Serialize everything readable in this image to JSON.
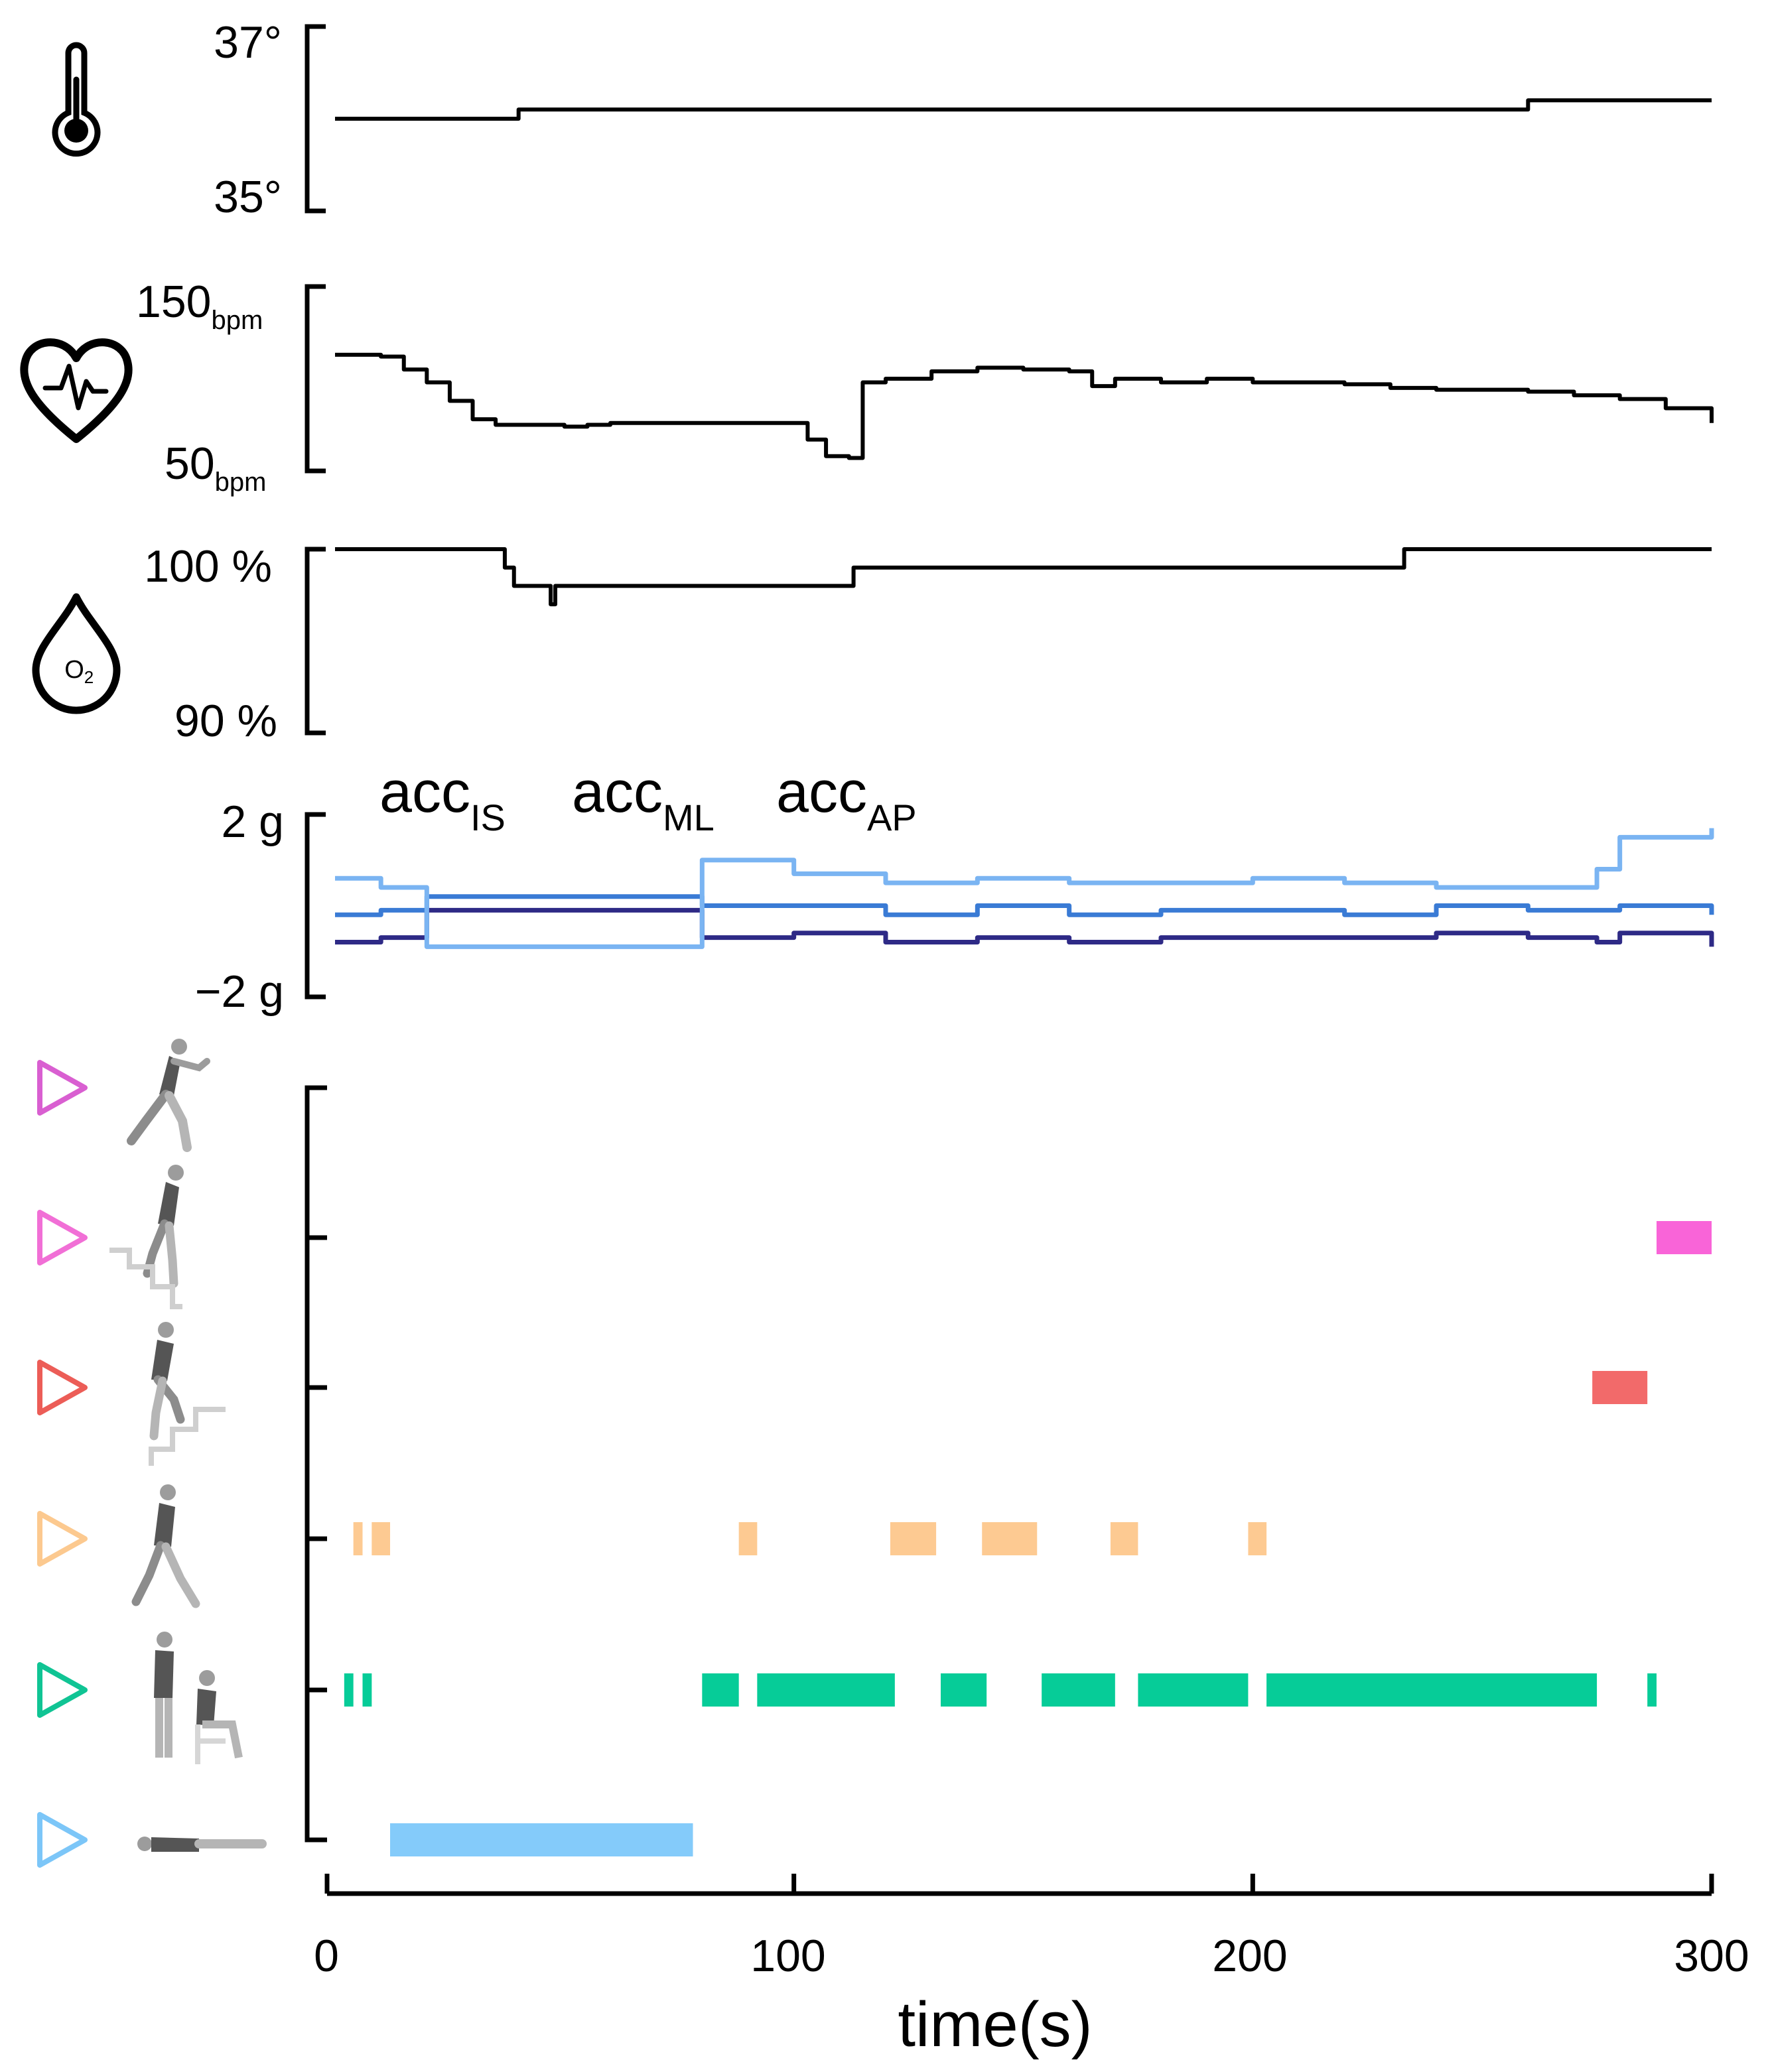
{
  "chart_data": [
    {
      "type": "line",
      "name_icon": "thermometer-icon",
      "ylim": [
        35,
        37
      ],
      "yticks": [
        "37°",
        "35°"
      ],
      "x": [
        0,
        20,
        40,
        60,
        80,
        100,
        120,
        140,
        160,
        180,
        200,
        220,
        240,
        260,
        280,
        300
      ],
      "series": [
        {
          "color": "#000000",
          "values": [
            36.0,
            36.0,
            36.1,
            36.1,
            36.1,
            36.1,
            36.1,
            36.1,
            36.1,
            36.1,
            36.1,
            36.1,
            36.1,
            36.2,
            36.2,
            36.2
          ]
        }
      ]
    },
    {
      "type": "line",
      "name_icon": "heart-rate-icon",
      "ylim": [
        50,
        150
      ],
      "yticks": [
        {
          "value": "150",
          "unit": "bpm"
        },
        {
          "value": "50",
          "unit": "bpm"
        }
      ],
      "x": [
        0,
        5,
        10,
        15,
        20,
        25,
        30,
        35,
        40,
        45,
        50,
        55,
        60,
        70,
        80,
        90,
        100,
        103,
        107,
        112,
        115,
        120,
        130,
        140,
        150,
        160,
        165,
        170,
        180,
        190,
        200,
        210,
        220,
        230,
        240,
        250,
        260,
        270,
        280,
        290,
        300
      ],
      "series": [
        {
          "color": "#000000",
          "values": [
            113,
            113,
            112,
            105,
            98,
            88,
            78,
            75,
            75,
            75,
            74,
            75,
            76,
            76,
            76,
            76,
            76,
            67,
            58,
            57,
            98,
            100,
            104,
            106,
            105,
            104,
            96,
            100,
            98,
            100,
            98,
            98,
            97,
            95,
            94,
            94,
            93,
            91,
            89,
            84,
            76
          ]
        }
      ]
    },
    {
      "type": "line",
      "name_icon": "oxygen-drop-icon",
      "ylim": [
        90,
        100
      ],
      "yticks": [
        "100 %",
        "90 %"
      ],
      "x": [
        0,
        35,
        37,
        39,
        46,
        47,
        48,
        80,
        112,
        113,
        232,
        233,
        300
      ],
      "series": [
        {
          "color": "#000000",
          "values": [
            100,
            100,
            99,
            98,
            98,
            97,
            98,
            98,
            98,
            99,
            99,
            100,
            100
          ]
        }
      ]
    },
    {
      "type": "line",
      "ylim": [
        -2,
        2
      ],
      "yticks": [
        "2 g",
        "−2 g"
      ],
      "legend": [
        {
          "base": "acc",
          "sub": "IS",
          "color": "#2e2a86"
        },
        {
          "base": "acc",
          "sub": "ML",
          "color": "#3a7bd5"
        },
        {
          "base": "acc",
          "sub": "AP",
          "color": "#7ab4f2"
        }
      ],
      "x": [
        0,
        10,
        20,
        40,
        60,
        76,
        80,
        100,
        120,
        140,
        160,
        180,
        200,
        220,
        240,
        260,
        275,
        280,
        300
      ],
      "series": [
        {
          "color": "#2e2a86",
          "values": [
            -0.8,
            -0.7,
            -0.1,
            -0.1,
            -0.1,
            -0.1,
            -0.7,
            -0.6,
            -0.8,
            -0.7,
            -0.8,
            -0.7,
            -0.7,
            -0.7,
            -0.6,
            -0.7,
            -0.8,
            -0.6,
            -0.9
          ]
        },
        {
          "color": "#3a7bd5",
          "values": [
            -0.2,
            -0.1,
            0.2,
            0.2,
            0.2,
            0.2,
            0.0,
            0.0,
            -0.2,
            0.0,
            -0.2,
            -0.1,
            -0.1,
            -0.2,
            0.0,
            -0.1,
            -0.1,
            0.0,
            -0.2
          ]
        },
        {
          "color": "#7ab4f2",
          "values": [
            0.6,
            0.4,
            -0.9,
            -0.9,
            -0.9,
            -0.9,
            1.0,
            0.7,
            0.5,
            0.6,
            0.5,
            0.5,
            0.6,
            0.5,
            0.4,
            0.4,
            0.8,
            1.5,
            1.7
          ]
        }
      ]
    },
    {
      "type": "bar",
      "subtype": "activity-timeline",
      "xlim": [
        0,
        300
      ],
      "xticks": [
        "0",
        "100",
        "200",
        "300"
      ],
      "xlabel": "time(s)",
      "rows": [
        {
          "icon": "running-figure-icon",
          "marker_color": "#d95fd1",
          "color": "#d95fd1",
          "intervals": []
        },
        {
          "icon": "stairs-descending-figure-icon",
          "marker_color": "#f16fd6",
          "color": "#f964d8",
          "intervals": [
            [
              288,
              300
            ]
          ]
        },
        {
          "icon": "stairs-ascending-figure-icon",
          "marker_color": "#ec5d57",
          "color": "#f26a6a",
          "intervals": [
            [
              274,
              286
            ]
          ]
        },
        {
          "icon": "walking-figure-icon",
          "marker_color": "#fcc98f",
          "color": "#fdca92",
          "intervals": [
            [
              4,
              6
            ],
            [
              8,
              12
            ],
            [
              88,
              92
            ],
            [
              121,
              131
            ],
            [
              141,
              153
            ],
            [
              169,
              175
            ],
            [
              199,
              203
            ]
          ]
        },
        {
          "icon": "standing-sitting-figure-icon",
          "marker_color": "#10c494",
          "color": "#06cc98",
          "intervals": [
            [
              2,
              4
            ],
            [
              6,
              8
            ],
            [
              80,
              88
            ],
            [
              92,
              122
            ],
            [
              132,
              142
            ],
            [
              154,
              170
            ],
            [
              175,
              199
            ],
            [
              203,
              275
            ],
            [
              286,
              288
            ]
          ]
        },
        {
          "icon": "lying-figure-icon",
          "marker_color": "#7cc6f8",
          "color": "#84cbfa",
          "intervals": [
            [
              12,
              78
            ]
          ]
        }
      ]
    }
  ]
}
